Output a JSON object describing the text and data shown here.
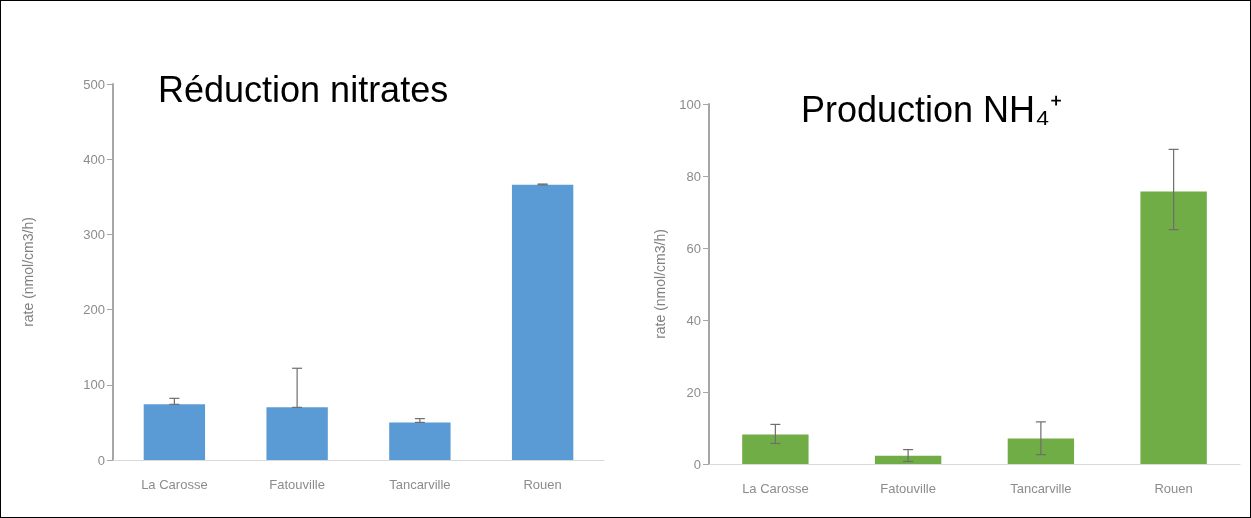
{
  "chart_data": [
    {
      "type": "bar",
      "title": "Réduction nitrates",
      "ylabel": "rate (nmol/cm3/h)",
      "categories": [
        "La Carosse",
        "Fatouville",
        "Tancarville",
        "Rouen"
      ],
      "values": [
        74,
        70,
        50,
        366
      ],
      "color": "#5b9bd5",
      "errors": [
        [
          74,
          82
        ],
        [
          70,
          122
        ],
        [
          50,
          55
        ],
        [
          366,
          367
        ]
      ],
      "ylim": [
        0,
        500
      ],
      "yticks": [
        0,
        100,
        200,
        300,
        400,
        500
      ],
      "grid": false
    },
    {
      "type": "bar",
      "title": "Production NH₄⁺",
      "ylabel": "rate (nmol/cm3/h)",
      "categories": [
        "La Carosse",
        "Fatouville",
        "Tancarville",
        "Rouen"
      ],
      "values": [
        8.2,
        2.3,
        7.1,
        75.7
      ],
      "color": "#70ad47",
      "errors": [
        [
          5.7,
          11
        ],
        [
          0.7,
          4
        ],
        [
          2.6,
          11.7
        ],
        [
          65.1,
          87.4
        ]
      ],
      "ylim": [
        0,
        100
      ],
      "yticks": [
        0,
        20,
        40,
        60,
        80,
        100
      ],
      "grid": false
    }
  ]
}
